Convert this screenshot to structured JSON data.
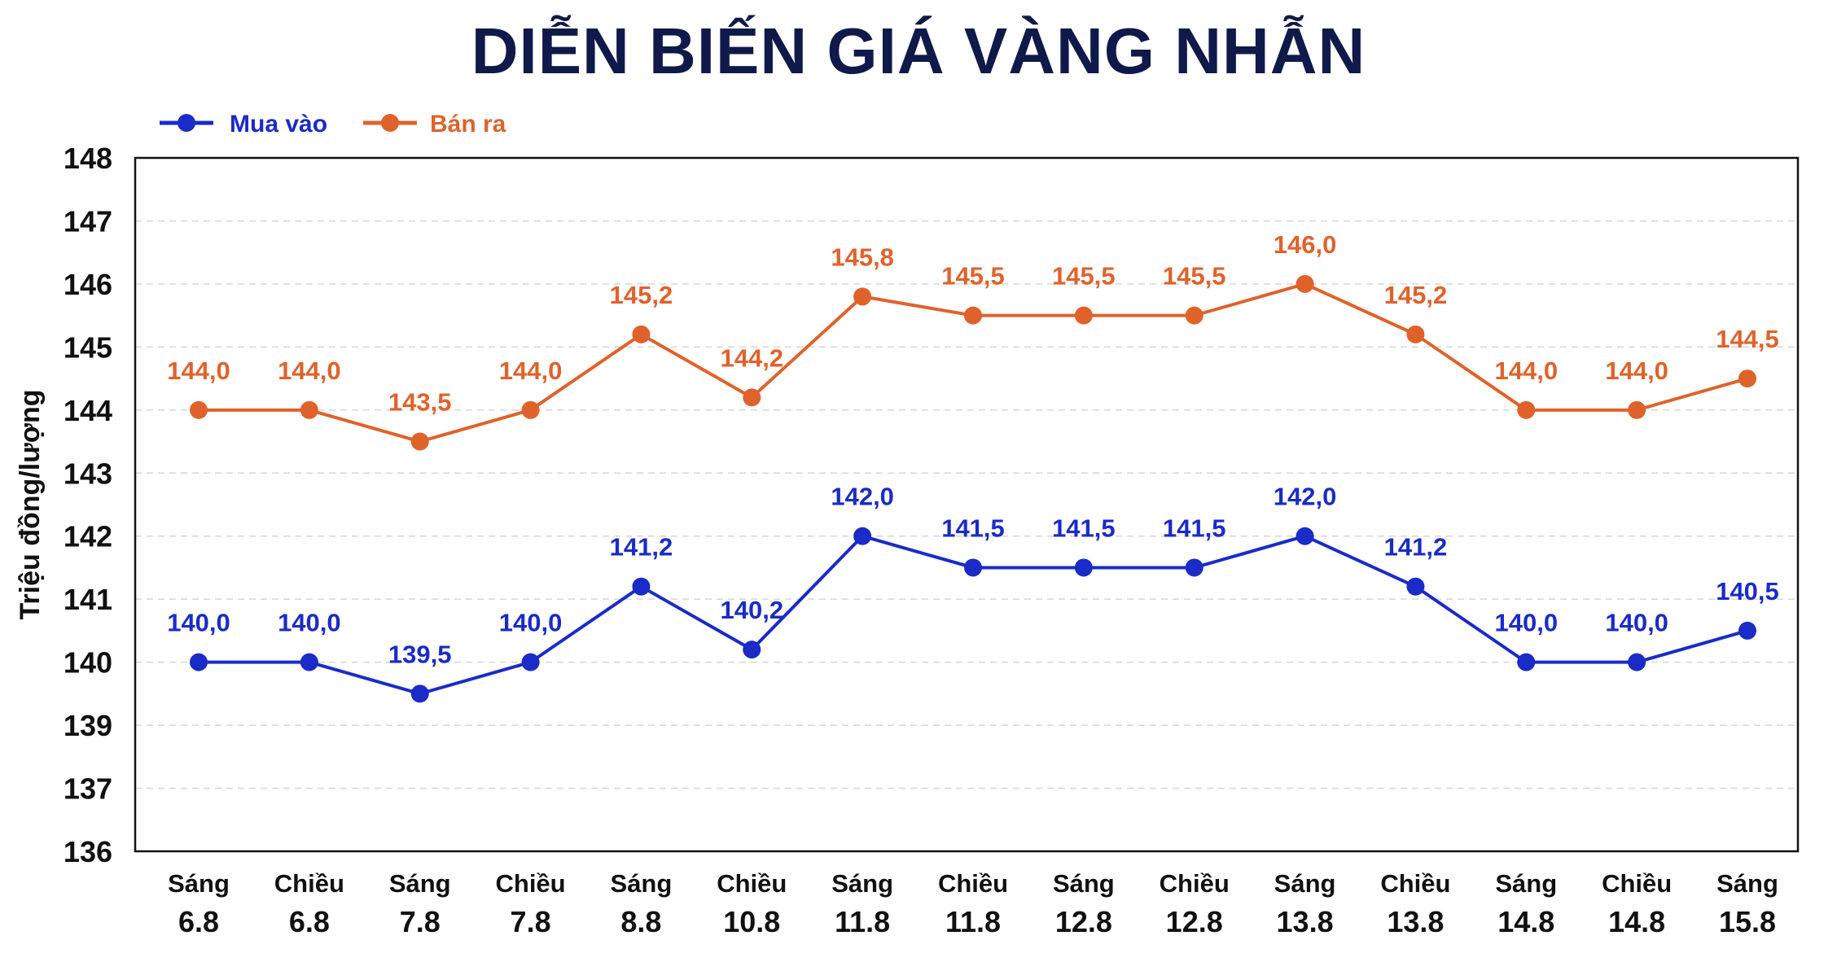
{
  "chart_data": {
    "type": "line",
    "title": "DIỄN BIẾN GIÁ VÀNG NHẪN",
    "ylabel": "Triệu đồng/lượng",
    "xlabel": "",
    "y_ticks": [
      "148",
      "147",
      "146",
      "145",
      "144",
      "143",
      "142",
      "141",
      "140",
      "139",
      "137",
      "136"
    ],
    "grid": true,
    "legend_position": "top-left",
    "categories": [
      [
        "Sáng",
        "6.8"
      ],
      [
        "Chiều",
        "6.8"
      ],
      [
        "Sáng",
        "7.8"
      ],
      [
        "Chiều",
        "7.8"
      ],
      [
        "Sáng",
        "8.8"
      ],
      [
        "Chiều",
        "10.8"
      ],
      [
        "Sáng",
        "11.8"
      ],
      [
        "Chiều",
        "11.8"
      ],
      [
        "Sáng",
        "12.8"
      ],
      [
        "Chiều",
        "12.8"
      ],
      [
        "Sáng",
        "13.8"
      ],
      [
        "Chiều",
        "13.8"
      ],
      [
        "Sáng",
        "14.8"
      ],
      [
        "Chiều",
        "14.8"
      ],
      [
        "Sáng",
        "15.8"
      ]
    ],
    "series": [
      {
        "name": "Mua vào",
        "color": "#1a2bc8",
        "values": [
          140.0,
          140.0,
          139.5,
          140.0,
          141.2,
          140.2,
          142.0,
          141.5,
          141.5,
          141.5,
          142.0,
          141.2,
          140.0,
          140.0,
          140.5
        ],
        "labels": [
          "140,0",
          "140,0",
          "139,5",
          "140,0",
          "141,2",
          "140,2",
          "142,0",
          "141,5",
          "141,5",
          "141,5",
          "142,0",
          "141,2",
          "140,0",
          "140,0",
          "140,5"
        ]
      },
      {
        "name": "Bán ra",
        "color": "#e0622b",
        "values": [
          144.0,
          144.0,
          143.5,
          144.0,
          145.2,
          144.2,
          145.8,
          145.5,
          145.5,
          145.5,
          146.0,
          145.2,
          144.0,
          144.0,
          144.5
        ],
        "labels": [
          "144,0",
          "144,0",
          "143,5",
          "144,0",
          "145,2",
          "144,2",
          "145,8",
          "145,5",
          "145,5",
          "145,5",
          "146,0",
          "145,2",
          "144,0",
          "144,0",
          "144,5"
        ]
      }
    ],
    "title_color": "#0f1a4a"
  }
}
